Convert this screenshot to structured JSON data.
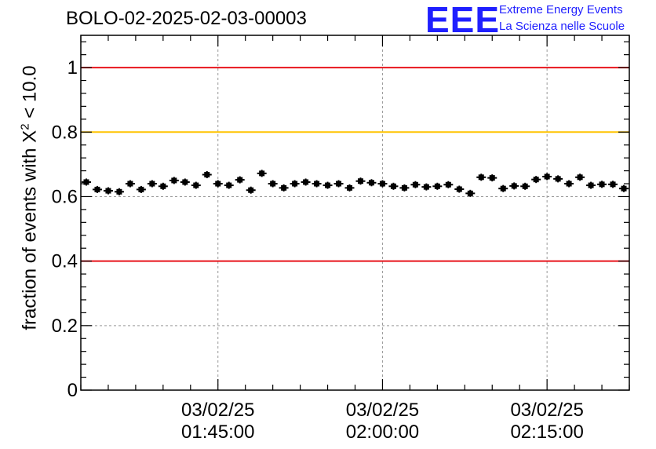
{
  "header": {
    "title": "BOLO-02-2025-02-03-00003",
    "logo_text": "EEE",
    "logo_line1": "Extreme Energy Events",
    "logo_line2": "La Scienza nelle Scuole"
  },
  "axis": {
    "ylabel_prefix": "fraction of events with X",
    "ylabel_sup": "2",
    "ylabel_suffix": " < 10.0"
  },
  "colors": {
    "red_line": "#e8141c",
    "yellow_line": "#ffc400",
    "points": "#000000",
    "grid": "#999999"
  },
  "chart_data": {
    "type": "scatter",
    "title": "BOLO-02-2025-02-03-00003",
    "xlabel": "",
    "ylabel": "fraction of events with X^2 < 10.0",
    "ylim": [
      0,
      1.1
    ],
    "y_ticks": [
      0,
      0.2,
      0.4,
      0.6,
      0.8,
      1
    ],
    "y_tick_labels": [
      "0",
      "0.2",
      "0.4",
      "0.6",
      "0.8",
      "1"
    ],
    "x_ticks": [
      {
        "date": "03/02/25",
        "time": "01:45:00"
      },
      {
        "date": "03/02/25",
        "time": "02:00:00"
      },
      {
        "date": "03/02/25",
        "time": "02:15:00"
      }
    ],
    "xlim": [
      "01:32:30",
      "02:22:30"
    ],
    "grid": true,
    "reference_lines": [
      {
        "y": 1.0,
        "color": "red"
      },
      {
        "y": 0.8,
        "color": "yellow"
      },
      {
        "y": 0.4,
        "color": "red"
      }
    ],
    "series": [
      {
        "x": [
          "01:33:00",
          "01:34:00",
          "01:35:00",
          "01:36:00",
          "01:37:00",
          "01:38:00",
          "01:39:00",
          "01:40:00",
          "01:41:00",
          "01:42:00",
          "01:43:00",
          "01:44:00",
          "01:45:00",
          "01:46:00",
          "01:47:00",
          "01:48:00",
          "01:49:00",
          "01:50:00",
          "01:51:00",
          "01:52:00",
          "01:53:00",
          "01:54:00",
          "01:55:00",
          "01:56:00",
          "01:57:00",
          "01:58:00",
          "01:59:00",
          "02:00:00",
          "02:01:00",
          "02:02:00",
          "02:03:00",
          "02:04:00",
          "02:05:00",
          "02:06:00",
          "02:07:00",
          "02:08:00",
          "02:09:00",
          "02:10:00",
          "02:11:00",
          "02:12:00",
          "02:13:00",
          "02:14:00",
          "02:15:00",
          "02:16:00",
          "02:17:00",
          "02:18:00",
          "02:19:00",
          "02:20:00",
          "02:21:00",
          "02:22:00"
        ],
        "y": [
          0.645,
          0.622,
          0.618,
          0.615,
          0.64,
          0.622,
          0.64,
          0.632,
          0.65,
          0.645,
          0.635,
          0.668,
          0.64,
          0.635,
          0.652,
          0.62,
          0.672,
          0.64,
          0.627,
          0.64,
          0.645,
          0.64,
          0.635,
          0.64,
          0.627,
          0.648,
          0.643,
          0.64,
          0.632,
          0.627,
          0.637,
          0.63,
          0.632,
          0.637,
          0.623,
          0.61,
          0.66,
          0.658,
          0.625,
          0.633,
          0.632,
          0.653,
          0.662,
          0.655,
          0.64,
          0.66,
          0.635,
          0.638,
          0.638,
          0.625
        ],
        "y_err": 0.011
      }
    ]
  }
}
